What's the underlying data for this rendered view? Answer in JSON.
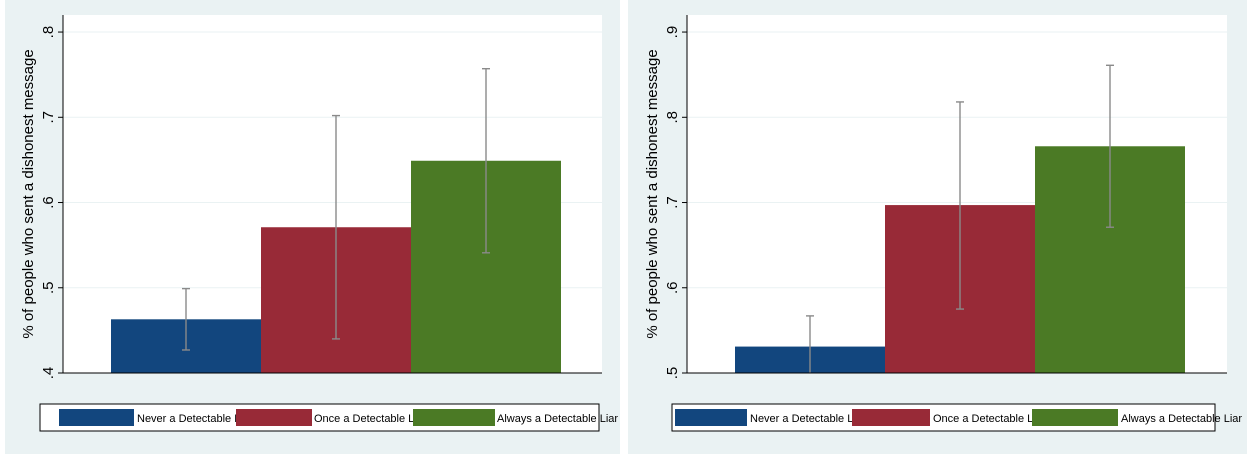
{
  "chart_data": [
    {
      "type": "bar",
      "ylabel": "% of people who sent a dishonest message",
      "ylim": [
        0.4,
        0.82
      ],
      "yticks": [
        0.4,
        0.5,
        0.6,
        0.7,
        0.8
      ],
      "ytick_labels": [
        ".4",
        ".5",
        ".6",
        ".7",
        ".8"
      ],
      "grid": true,
      "legend_position": "bottom",
      "series": [
        {
          "name": "Never a Detectable Liar",
          "value": 0.463,
          "ci_low": 0.427,
          "ci_high": 0.499,
          "color": "#12467e"
        },
        {
          "name": "Once a Detectable Liar",
          "value": 0.571,
          "ci_low": 0.44,
          "ci_high": 0.702,
          "color": "#982a37"
        },
        {
          "name": "Always a Detectable Liar",
          "value": 0.649,
          "ci_low": 0.541,
          "ci_high": 0.757,
          "color": "#4b7a25"
        }
      ]
    },
    {
      "type": "bar",
      "ylabel": "% of people who sent a dishonest message",
      "ylim": [
        0.5,
        0.92
      ],
      "yticks": [
        0.5,
        0.6,
        0.7,
        0.8,
        0.9
      ],
      "ytick_labels": [
        ".5",
        ".6",
        ".7",
        ".8",
        ".9"
      ],
      "grid": true,
      "legend_position": "bottom",
      "series": [
        {
          "name": "Never a Detectable Liar",
          "value": 0.531,
          "ci_low": 0.495,
          "ci_high": 0.567,
          "color": "#12467e"
        },
        {
          "name": "Once a Detectable Liar",
          "value": 0.697,
          "ci_low": 0.575,
          "ci_high": 0.818,
          "color": "#982a37"
        },
        {
          "name": "Always a Detectable Liar",
          "value": 0.766,
          "ci_low": 0.671,
          "ci_high": 0.861,
          "color": "#4b7a25"
        }
      ]
    }
  ]
}
